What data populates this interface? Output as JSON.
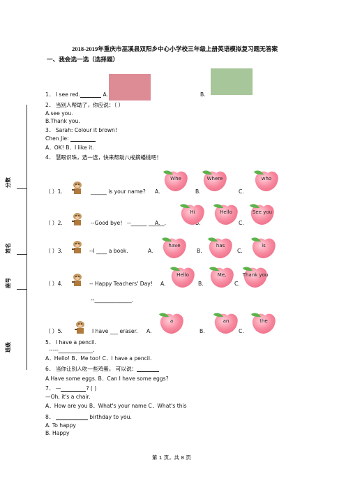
{
  "title": "2018-2019年重庆市巫溪县双阳乡中心小学校三年级上册英语模拟复习题无答案",
  "section1": "一、我会选一选（选择题）",
  "sidebar": {
    "score": "分数",
    "name": "姓名",
    "seat": "座号",
    "class": "班级"
  },
  "q1": {
    "num": "1．",
    "text": "I see red.",
    "optA": "A.",
    "optB": "B.",
    "colorA": "#dd8c95",
    "colorB": "#a7c699"
  },
  "q2": {
    "stem": "2． 当别人帮助了，你应说：（          ）",
    "a": "A.see    you.",
    "b": "B.Thank    you."
  },
  "q3": {
    "stem": "3． Sarah: Colour it brown!",
    "line2": "Chen Jie:",
    "opts": "A．OK!      B．I like it."
  },
  "q4": {
    "stem": "4． 慧眼识珠，选一选，快来帮助八戒摘蟠桃吧！",
    "rows": [
      {
        "paren": "（     ）1.",
        "sentence": "______ is your name?",
        "a": "A.",
        "b": "B.",
        "c": "C.",
        "peaches": [
          "Whe",
          "Where",
          "who"
        ]
      },
      {
        "paren": "（     ）2.",
        "sentence": "--Good bye！  --______ ______.",
        "a": "A.",
        "b": "B.",
        "c": "C.",
        "peaches": [
          "Hi",
          "Hello",
          "See you"
        ]
      },
      {
        "paren": "（     ）3.",
        "sentence": "--I ____ a book.",
        "a": "A.",
        "b": "B.",
        "c": "C.",
        "peaches": [
          "have",
          "has",
          "is"
        ]
      },
      {
        "paren": "（     ）4.",
        "sentence": "-- Happy Teachers' Day!",
        "a": "A.",
        "b": "B.",
        "c": "C.",
        "peaches": [
          "Hello",
          "Me,",
          "Thank you"
        ],
        "reply": "--______________."
      },
      {
        "paren": "（     ）5.",
        "sentence": "I have ___ eraser.",
        "a": "A.",
        "b": "B.",
        "c": "C.",
        "peaches": [
          "a",
          "an",
          "the"
        ]
      }
    ]
  },
  "q5": {
    "stem": "5． I have a pencil.",
    "line2": "-----_____________.",
    "opts": "A．Hello!       B．Me too!       C．I have a pencil."
  },
  "q6": {
    "stem": "6． 当你让别人吃一些鸡蛋， 可以说：",
    "opts": "A.Have some eggs.      B．Can I have some eggs?"
  },
  "q7": {
    "stem": "7． —",
    "stem2": "? (          )",
    "line2": "—Oh, it's a chair.",
    "opts": "A．How are you       B．What's your name        C．What's this"
  },
  "q8": {
    "stem": "8．",
    "stem2": "birthday to you.",
    "a": "A. To happy",
    "b": "B. Happy"
  },
  "footer": "第  1  页，共  8  页"
}
